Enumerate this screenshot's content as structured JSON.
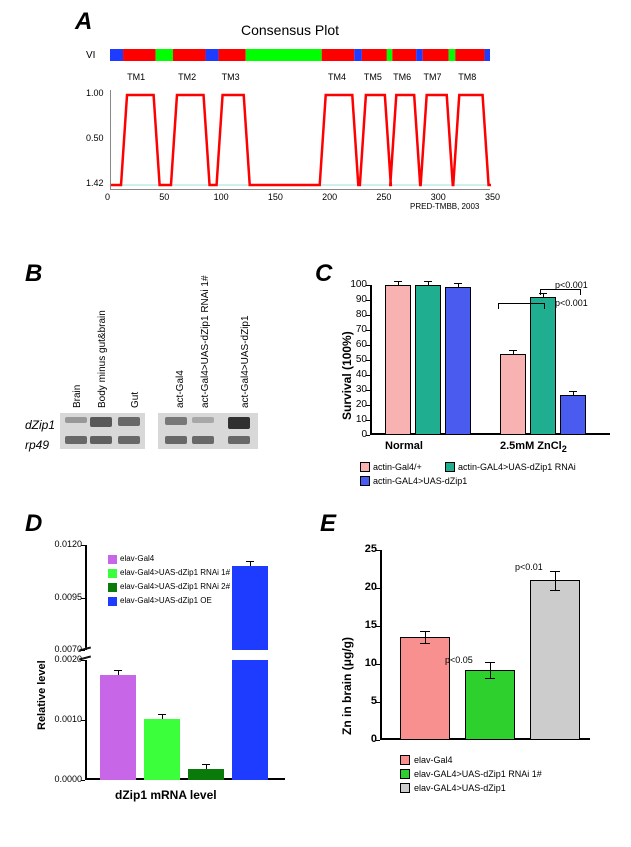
{
  "panelA": {
    "label": "A",
    "title": "Consensus Plot",
    "track_label": "VI",
    "consensus_segments": [
      {
        "start": 0,
        "end": 12,
        "color": "#1e3cff"
      },
      {
        "start": 12,
        "end": 42,
        "color": "#ff0000"
      },
      {
        "start": 42,
        "end": 58,
        "color": "#00ff00"
      },
      {
        "start": 58,
        "end": 88,
        "color": "#ff0000"
      },
      {
        "start": 88,
        "end": 100,
        "color": "#1e3cff"
      },
      {
        "start": 100,
        "end": 125,
        "color": "#ff0000"
      },
      {
        "start": 125,
        "end": 195,
        "color": "#00ff00"
      },
      {
        "start": 195,
        "end": 225,
        "color": "#ff0000"
      },
      {
        "start": 225,
        "end": 232,
        "color": "#1e3cff"
      },
      {
        "start": 232,
        "end": 255,
        "color": "#ff0000"
      },
      {
        "start": 255,
        "end": 260,
        "color": "#00ff00"
      },
      {
        "start": 260,
        "end": 282,
        "color": "#ff0000"
      },
      {
        "start": 282,
        "end": 288,
        "color": "#1e3cff"
      },
      {
        "start": 288,
        "end": 312,
        "color": "#ff0000"
      },
      {
        "start": 312,
        "end": 318,
        "color": "#00ff00"
      },
      {
        "start": 318,
        "end": 345,
        "color": "#ff0000"
      },
      {
        "start": 345,
        "end": 350,
        "color": "#1e3cff"
      }
    ],
    "tm_labels": [
      "TM1",
      "TM2",
      "TM3",
      "TM4",
      "TM5",
      "TM6",
      "TM7",
      "TM8"
    ],
    "tm_positions": [
      25,
      72,
      112,
      210,
      243,
      270,
      298,
      330
    ],
    "y_ticks": [
      "1.00",
      "0.50",
      "1.42"
    ],
    "x_ticks": [
      "0",
      "50",
      "100",
      "150",
      "200",
      "250",
      "300",
      "350"
    ],
    "x_range": [
      0,
      350
    ],
    "credit": "PRED-TMBB, 2003",
    "plot_peaks": [
      {
        "start": 12,
        "end": 42,
        "height": 1.0
      },
      {
        "start": 58,
        "end": 88,
        "height": 1.0
      },
      {
        "start": 100,
        "end": 125,
        "height": 1.0
      },
      {
        "start": 195,
        "end": 225,
        "height": 1.0
      },
      {
        "start": 232,
        "end": 255,
        "height": 1.0
      },
      {
        "start": 260,
        "end": 282,
        "height": 1.0
      },
      {
        "start": 288,
        "end": 312,
        "height": 1.0
      },
      {
        "start": 318,
        "end": 345,
        "height": 1.0
      }
    ]
  },
  "panelB": {
    "label": "B",
    "lanes_left": [
      "Brain",
      "Body minus gut&brain",
      "Gut"
    ],
    "lanes_right": [
      "act-Gal4",
      "act-Gal4>UAS-dZip1 RNAi 1#",
      "act-Gal4>UAS-dZip1"
    ],
    "row_labels": [
      "dZip1",
      "rp49"
    ],
    "intensities_dzip1": [
      0.3,
      0.7,
      0.6,
      0.5,
      0.2,
      0.95
    ],
    "intensities_rp49": [
      0.6,
      0.65,
      0.6,
      0.6,
      0.6,
      0.6
    ]
  },
  "panelC": {
    "label": "C",
    "ylabel": "Survival (100%)",
    "y_ticks": [
      0,
      10,
      20,
      30,
      40,
      50,
      60,
      70,
      80,
      90,
      100
    ],
    "x_groups": [
      "Normal",
      "2.5mM ZnCl₂"
    ],
    "legend": [
      {
        "label": "actin-Gal4/+",
        "color": "#f8b2b2"
      },
      {
        "label": "actin-GAL4>UAS-dZip1 RNAi",
        "color": "#1fae8f"
      },
      {
        "label": "actin-GAL4>UAS-dZip1",
        "color": "#4a5cf0"
      }
    ],
    "data": {
      "Normal": [
        100,
        100,
        99
      ],
      "ZnCl2": [
        54,
        92,
        27
      ]
    },
    "pvalues": [
      "p<0.001",
      "p<0.001"
    ]
  },
  "panelD": {
    "label": "D",
    "ylabel": "Relative level",
    "xlabel": "dZip1 mRNA level",
    "legend": [
      {
        "label": "elav-Gal4",
        "color": "#c866e8"
      },
      {
        "label": "elav-Gal4>UAS-dZip1 RNAi 1#",
        "color": "#3cff3c"
      },
      {
        "label": "elav-Gal4>UAS-dZip1 RNAi 2#",
        "color": "#0a7a0a"
      },
      {
        "label": "elav-Gal4>UAS-dZip1 OE",
        "color": "#1e3cff"
      }
    ],
    "y_ticks_lower": [
      "0.0000",
      "0.0010",
      "0.0020"
    ],
    "y_ticks_upper": [
      "0.0070",
      "0.0095",
      "0.0120"
    ],
    "values": [
      0.00175,
      0.00102,
      0.00018,
      0.011
    ]
  },
  "panelE": {
    "label": "E",
    "ylabel": "Zn in brain (μg/g)",
    "y_ticks": [
      0,
      5,
      10,
      15,
      20,
      25
    ],
    "legend": [
      {
        "label": "elav-Gal4",
        "color": "#f89090"
      },
      {
        "label": "elav-GAL4>UAS-dZip1 RNAi 1#",
        "color": "#2dd02d"
      },
      {
        "label": "elav-GAL4>UAS-dZip1",
        "color": "#cccccc"
      }
    ],
    "values": [
      13.5,
      9.2,
      21
    ],
    "errors": [
      0.8,
      1.0,
      1.2
    ],
    "pvalues": [
      "p<0.05",
      "p<0.01"
    ]
  }
}
